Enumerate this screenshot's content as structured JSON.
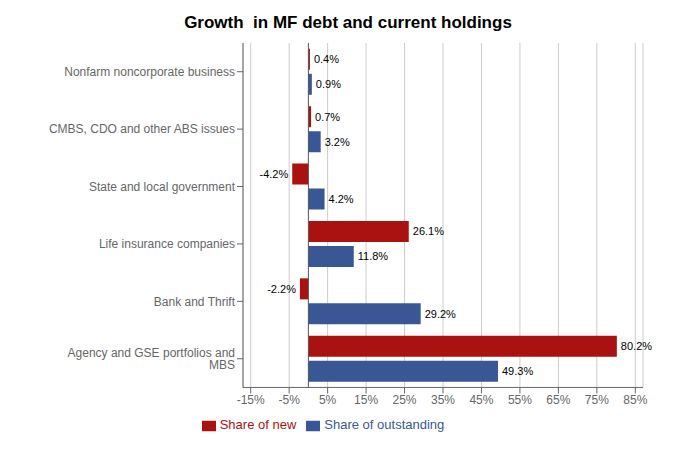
{
  "chart_data": {
    "type": "bar",
    "orientation": "horizontal",
    "title": "Growth  in MF debt and current holdings",
    "categories": [
      "Agency and GSE portfolios and MBS",
      "Bank and Thrift",
      "Life insurance companies",
      "State and local government",
      "CMBS, CDO and other ABS issues",
      "Nonfarm noncorporate business"
    ],
    "series": [
      {
        "name": "Share of new",
        "color": "#AA1111",
        "values": [
          80.2,
          -2.2,
          26.1,
          -4.2,
          0.7,
          0.4
        ],
        "value_labels": [
          "80.2%",
          "-2.2%",
          "26.1%",
          "-4.2%",
          "0.7%",
          "0.4%"
        ]
      },
      {
        "name": "Share of outstanding",
        "color": "#3A5795",
        "values": [
          49.3,
          29.2,
          11.8,
          4.2,
          3.2,
          0.9
        ],
        "value_labels": [
          "49.3%",
          "29.2%",
          "11.8%",
          "4.2%",
          "3.2%",
          "0.9%"
        ]
      }
    ],
    "xlim": [
      -17,
      87
    ],
    "xticks": [
      {
        "value": -15,
        "label": "-15%"
      },
      {
        "value": -5,
        "label": "-5%"
      },
      {
        "value": 5,
        "label": "5%"
      },
      {
        "value": 15,
        "label": "15%"
      },
      {
        "value": 25,
        "label": "25%"
      },
      {
        "value": 35,
        "label": "35%"
      },
      {
        "value": 45,
        "label": "45%"
      },
      {
        "value": 55,
        "label": "55%"
      },
      {
        "value": 65,
        "label": "65%"
      },
      {
        "value": 75,
        "label": "75%"
      },
      {
        "value": 85,
        "label": "85%"
      }
    ],
    "grid": true,
    "legend": "bottom",
    "data_labels": true
  }
}
